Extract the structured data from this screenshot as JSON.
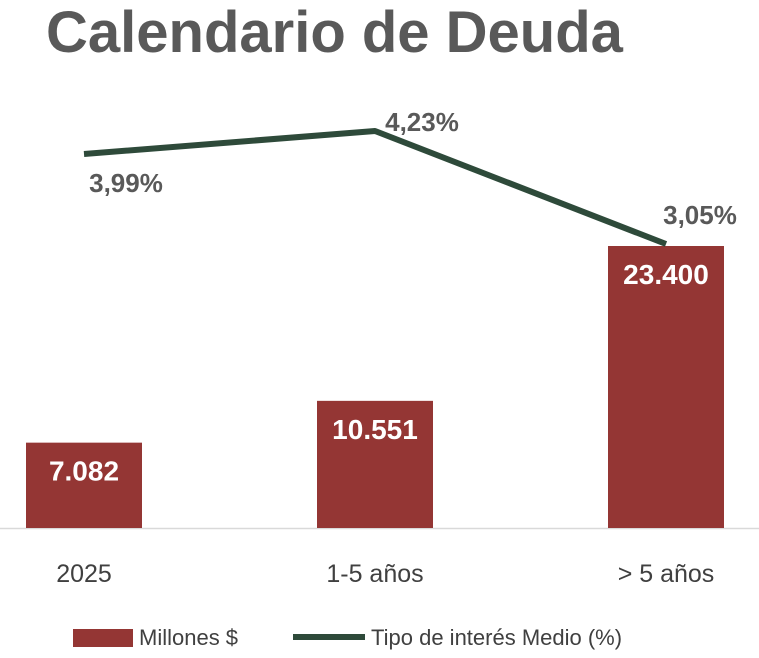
{
  "chart_data": {
    "type": "bar",
    "title": "Calendario de Deuda",
    "categories": [
      "2025",
      "1-5 años",
      "> 5 años"
    ],
    "series": [
      {
        "name": "Millones $",
        "type": "bar",
        "values": [
          7082,
          10551,
          23400
        ],
        "labels": [
          "7.082",
          "10.551",
          "23.400"
        ],
        "color": "#943634"
      },
      {
        "name": "Tipo de interés Medio (%)",
        "type": "line",
        "values": [
          3.99,
          4.23,
          3.05
        ],
        "labels": [
          "3,99%",
          "4,23%",
          "3,05%"
        ],
        "color": "#2E4A3A"
      }
    ],
    "legend_position": "bottom",
    "grid": false,
    "axis_color": "#d9d9d9"
  }
}
